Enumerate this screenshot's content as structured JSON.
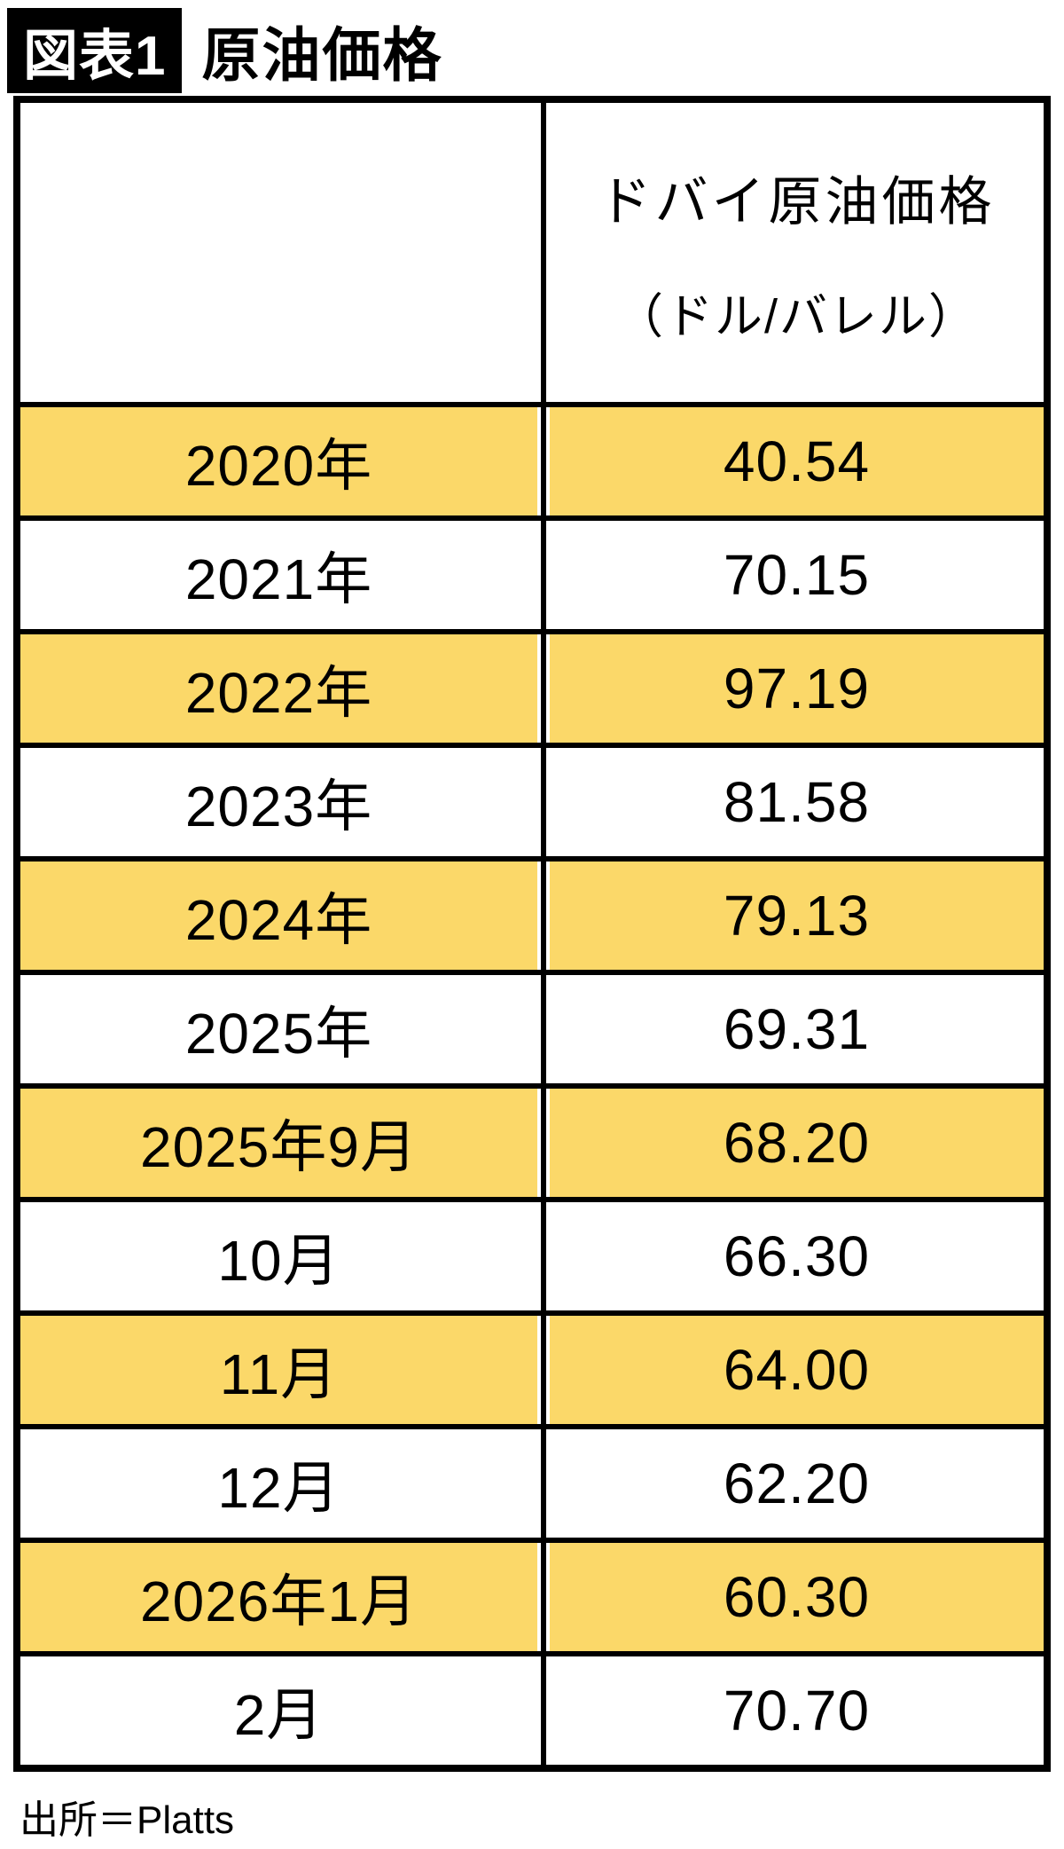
{
  "title": {
    "badge": "図表1",
    "text": "原油価格"
  },
  "table": {
    "header": {
      "label_col": "",
      "value_col_line1": "ドバイ原油価格",
      "value_col_line2": "（ドル/バレル）"
    },
    "rows": [
      {
        "label": "2020年",
        "value": "40.54",
        "highlight": true
      },
      {
        "label": "2021年",
        "value": "70.15",
        "highlight": false
      },
      {
        "label": "2022年",
        "value": "97.19",
        "highlight": true
      },
      {
        "label": "2023年",
        "value": "81.58",
        "highlight": false
      },
      {
        "label": "2024年",
        "value": "79.13",
        "highlight": true
      },
      {
        "label": "2025年",
        "value": "69.31",
        "highlight": false
      },
      {
        "label": "2025年9月",
        "value": "68.20",
        "highlight": true
      },
      {
        "label": "10月",
        "value": "66.30",
        "highlight": false
      },
      {
        "label": "11月",
        "value": "64.00",
        "highlight": true
      },
      {
        "label": "12月",
        "value": "62.20",
        "highlight": false
      },
      {
        "label": "2026年1月",
        "value": "60.30",
        "highlight": true
      },
      {
        "label": "2月",
        "value": "70.70",
        "highlight": false
      }
    ]
  },
  "source": "出所＝Platts",
  "colors": {
    "highlight": "#fbd869",
    "border": "#000000",
    "badge_bg": "#000000",
    "badge_text": "#ffffff"
  },
  "chart_data": {
    "type": "table",
    "title": "図表1 原油価格",
    "columns": [
      "",
      "ドバイ原油価格（ドル/バレル）"
    ],
    "categories": [
      "2020年",
      "2021年",
      "2022年",
      "2023年",
      "2024年",
      "2025年",
      "2025年9月",
      "10月",
      "11月",
      "12月",
      "2026年1月",
      "2月"
    ],
    "values": [
      40.54,
      70.15,
      97.19,
      81.58,
      79.13,
      69.31,
      68.2,
      66.3,
      64.0,
      62.2,
      60.3,
      70.7
    ],
    "source": "出所＝Platts",
    "layout_hints": {
      "highlighted_row_color": "#fbd869",
      "alternating_rows": true,
      "grid": "heavy black borders"
    }
  }
}
